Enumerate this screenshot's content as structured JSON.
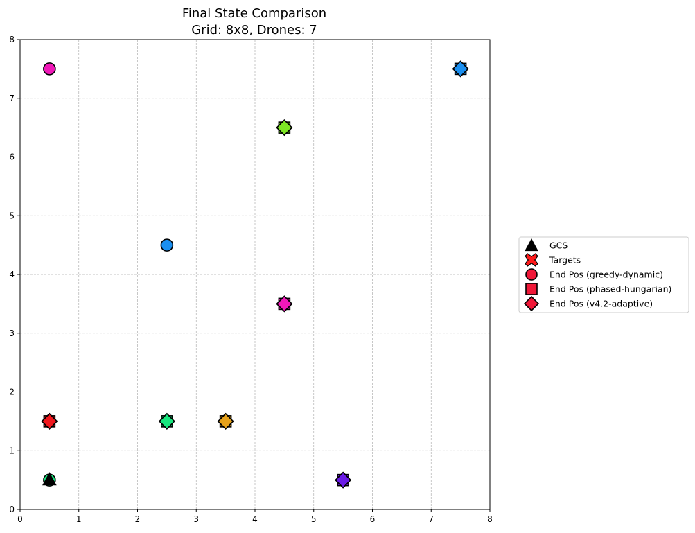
{
  "chart_data": {
    "type": "scatter",
    "title_lines": [
      "Final State Comparison",
      "Grid: 8x8, Drones: 7"
    ],
    "xlabel": "",
    "ylabel": "",
    "xlim": [
      0,
      8
    ],
    "ylim": [
      0,
      8
    ],
    "xticks": [
      "0",
      "1",
      "2",
      "3",
      "4",
      "5",
      "6",
      "7",
      "8"
    ],
    "yticks": [
      "0",
      "1",
      "2",
      "3",
      "4",
      "5",
      "6",
      "7",
      "8"
    ],
    "grid": true,
    "legend_position": "right",
    "gcs": {
      "x": 0.5,
      "y": 0.5,
      "color": "#000000"
    },
    "drones": [
      {
        "color": "#e6a11a",
        "greedy": [
          3.5,
          1.5
        ],
        "phased": [
          3.5,
          1.5
        ],
        "adaptive": [
          3.5,
          1.5
        ]
      },
      {
        "color": "#7ee625",
        "greedy": [
          4.5,
          6.5
        ],
        "phased": [
          4.5,
          6.5
        ],
        "adaptive": [
          4.5,
          6.5
        ]
      },
      {
        "color": "#18e67e",
        "greedy": [
          0.5,
          0.5
        ],
        "phased": [
          2.5,
          1.5
        ],
        "adaptive": [
          2.5,
          1.5
        ]
      },
      {
        "color": "#1a8ff0",
        "greedy": [
          2.5,
          4.5
        ],
        "phased": [
          7.5,
          7.5
        ],
        "adaptive": [
          7.5,
          7.5
        ]
      },
      {
        "color": "#6a1ae6",
        "greedy": [
          5.5,
          0.5
        ],
        "phased": [
          5.5,
          0.5
        ],
        "adaptive": [
          5.5,
          0.5
        ]
      },
      {
        "color": "#f018b8",
        "greedy": [
          0.5,
          7.5
        ],
        "phased": [
          4.5,
          3.5
        ],
        "adaptive": [
          4.5,
          3.5
        ]
      },
      {
        "color": "#f0181e",
        "greedy": [
          0.5,
          1.5
        ],
        "phased": [
          0.5,
          1.5
        ],
        "adaptive": [
          0.5,
          1.5
        ]
      }
    ],
    "legend": [
      {
        "label": "GCS",
        "marker": "triangle",
        "color": "#000000"
      },
      {
        "label": "Targets",
        "marker": "x",
        "color": "#ff1a1a"
      },
      {
        "label": "End Pos (greedy-dynamic)",
        "marker": "circle",
        "color": "#f01838"
      },
      {
        "label": "End Pos (phased-hungarian)",
        "marker": "square",
        "color": "#f01838"
      },
      {
        "label": "End Pos (v4.2-adaptive)",
        "marker": "diamond",
        "color": "#f01838"
      }
    ]
  }
}
